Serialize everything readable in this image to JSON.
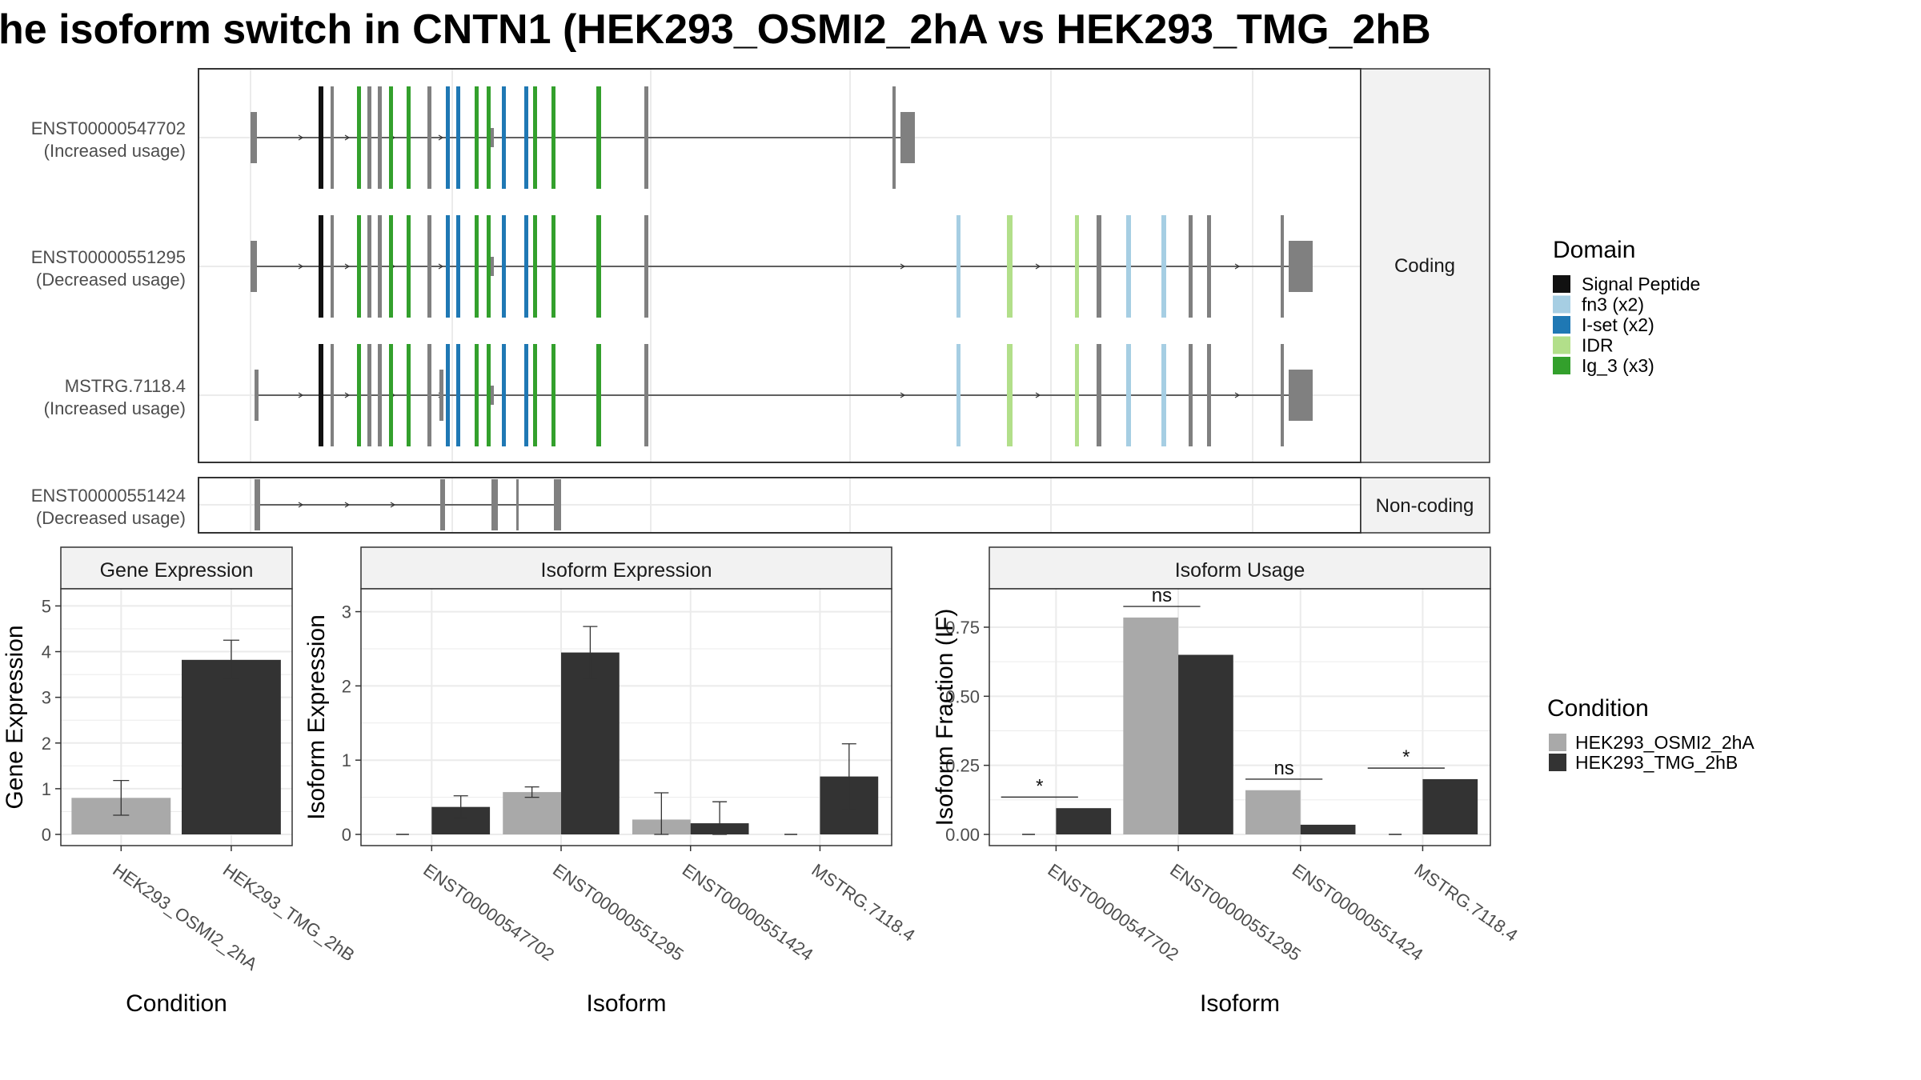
{
  "title": "he isoform switch in CNTN1 (HEK293_OSMI2_2hA vs HEK293_TMG_2hB",
  "colors": {
    "cond_a": "#A9A9A9",
    "cond_b": "#333333",
    "exon_default": "#808080",
    "strip_bg": "#F2F2F2",
    "panel_border": "#333333",
    "grid": "#EBEBEB"
  },
  "chart_data": [
    {
      "type": "gene-structure",
      "facets": [
        "Coding",
        "Non-coding"
      ],
      "isoforms": [
        {
          "id": "ENST00000547702",
          "usage": "(Increased usage)",
          "facet": "Coding"
        },
        {
          "id": "ENST00000551295",
          "usage": "(Decreased usage)",
          "facet": "Coding"
        },
        {
          "id": "MSTRG.7118.4",
          "usage": "(Increased usage)",
          "facet": "Coding"
        },
        {
          "id": "ENST00000551424",
          "usage": "(Decreased usage)",
          "facet": "Non-coding"
        }
      ],
      "domain_legend": {
        "title": "Domain",
        "entries": [
          {
            "name": "Signal Peptide",
            "color": "#111111"
          },
          {
            "name": "fn3 (x2)",
            "color": "#A6CEE3"
          },
          {
            "name": "I-set (x2)",
            "color": "#1F78B4"
          },
          {
            "name": "IDR",
            "color": "#B2DF8A"
          },
          {
            "name": "Ig_3 (x3)",
            "color": "#33A02C"
          }
        ]
      }
    },
    {
      "type": "bar",
      "title": "Gene Expression",
      "xlabel": "Condition",
      "ylabel": "Gene Expression",
      "categories": [
        "HEK293_OSMI2_2hA",
        "HEK293_TMG_2hB"
      ],
      "values": [
        0.8,
        3.82
      ],
      "error": [
        [
          0.42,
          1.18
        ],
        [
          3.4,
          4.25
        ]
      ],
      "ylim": [
        0,
        5.2
      ],
      "yticks": [
        0,
        1,
        2,
        3,
        4,
        5
      ]
    },
    {
      "type": "bar",
      "title": "Isoform Expression",
      "xlabel": "Isoform",
      "ylabel": "Isoform Expression",
      "categories": [
        "ENST00000547702",
        "ENST00000551295",
        "ENST00000551424",
        "MSTRG.7118.4"
      ],
      "series": [
        {
          "name": "HEK293_OSMI2_2hA",
          "values": [
            0.0,
            0.57,
            0.2,
            0.0
          ],
          "error": [
            [
              0,
              0
            ],
            [
              0.5,
              0.64
            ],
            [
              0,
              0.56
            ],
            [
              0,
              0
            ]
          ]
        },
        {
          "name": "HEK293_TMG_2hB",
          "values": [
            0.37,
            2.45,
            0.15,
            0.78
          ],
          "error": [
            [
              0.22,
              0.52
            ],
            [
              2.1,
              2.8
            ],
            [
              0,
              0.44
            ],
            [
              0.33,
              1.22
            ]
          ]
        }
      ],
      "ylim": [
        0,
        3.2
      ],
      "yticks": [
        0,
        1,
        2,
        3
      ]
    },
    {
      "type": "bar",
      "title": "Isoform Usage",
      "xlabel": "Isoform",
      "ylabel": "Isoform Fraction (IF)",
      "categories": [
        "ENST00000547702",
        "ENST00000551295",
        "ENST00000551424",
        "MSTRG.7118.4"
      ],
      "series": [
        {
          "name": "HEK293_OSMI2_2hA",
          "values": [
            0.0,
            0.785,
            0.16,
            0.0
          ]
        },
        {
          "name": "HEK293_TMG_2hB",
          "values": [
            0.095,
            0.65,
            0.035,
            0.2
          ]
        }
      ],
      "significance": [
        "*",
        "ns",
        "ns",
        "*"
      ],
      "yticks": [
        "0.00",
        "0.25",
        "0.50",
        "0.75"
      ],
      "ylim": [
        0,
        0.86
      ]
    }
  ],
  "legend_condition": {
    "title": "Condition",
    "entries": [
      {
        "name": "HEK293_OSMI2_2hA",
        "color": "#A9A9A9"
      },
      {
        "name": "HEK293_TMG_2hB",
        "color": "#333333"
      }
    ]
  }
}
